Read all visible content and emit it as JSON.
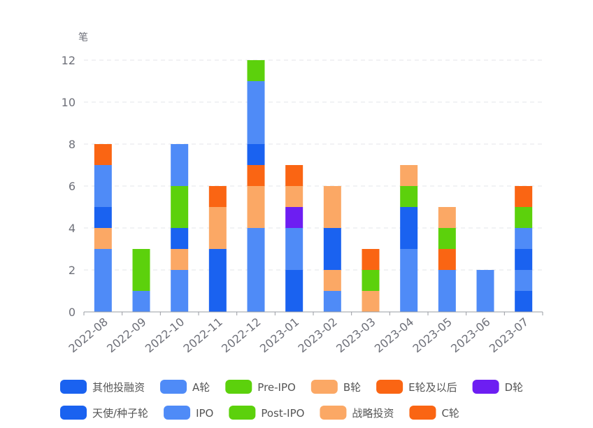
{
  "chart_data": {
    "type": "bar",
    "stacked": true,
    "y_unit": "笔",
    "ylim": [
      0,
      12
    ],
    "yticks": [
      0,
      2,
      4,
      6,
      8,
      10,
      12
    ],
    "grid": true,
    "legend_position": "bottom",
    "categories": [
      "2022-08",
      "2022-09",
      "2022-10",
      "2022-11",
      "2022-12",
      "2023-01",
      "2023-02",
      "2023-03",
      "2023-04",
      "2023-05",
      "2023-06",
      "2023-07"
    ],
    "series": [
      {
        "name": "天使/种子轮",
        "color": "#1a62f0",
        "values": [
          0,
          0,
          0,
          1,
          0,
          2,
          0,
          0,
          0,
          0,
          0,
          1
        ]
      },
      {
        "name": "IPO",
        "color": "#4f8bf7",
        "values": [
          3,
          1,
          2,
          0,
          4,
          2,
          1,
          0,
          3,
          1,
          2,
          1
        ]
      },
      {
        "name": "战略投资",
        "color": "#fba865",
        "values": [
          0,
          0,
          0,
          0,
          0,
          0,
          0,
          1,
          0,
          0,
          0,
          0
        ]
      },
      {
        "name": "Post-IPO",
        "color": "#5cd10c",
        "values": [
          0,
          1,
          0,
          0,
          0,
          0,
          0,
          0,
          0,
          0,
          0,
          0
        ]
      },
      {
        "name": "其他投融资",
        "color": "#1a62f0",
        "values": [
          0,
          0,
          0,
          2,
          0,
          0,
          0,
          0,
          2,
          0,
          0,
          1
        ]
      },
      {
        "name": "B轮",
        "color": "#fba865",
        "values": [
          1,
          0,
          1,
          0,
          2,
          0,
          1,
          0,
          0,
          0,
          0,
          0
        ]
      },
      {
        "name": "A轮",
        "color": "#4f8bf7",
        "values": [
          0,
          0,
          0,
          0,
          0,
          0,
          0,
          0,
          0,
          1,
          0,
          1
        ]
      },
      {
        "name": "C轮",
        "color": "#fa6513",
        "values": [
          0,
          0,
          0,
          0,
          1,
          0,
          0,
          0,
          0,
          1,
          0,
          0
        ]
      },
      {
        "name": "天使/种子轮",
        "color": "#1a62f0",
        "values": [
          1,
          0,
          1,
          0,
          1,
          0,
          2,
          0,
          0,
          0,
          0,
          0
        ]
      },
      {
        "name": "Pre-IPO",
        "color": "#5cd10c",
        "values": [
          0,
          1,
          2,
          0,
          0,
          0,
          0,
          1,
          1,
          1,
          0,
          1
        ]
      },
      {
        "name": "IPO",
        "color": "#4f8bf7",
        "values": [
          2,
          0,
          2,
          0,
          3,
          0,
          0,
          0,
          0,
          0,
          0,
          0
        ]
      },
      {
        "name": "D轮",
        "color": "#6d1ef2",
        "values": [
          0,
          0,
          0,
          0,
          0,
          1,
          0,
          0,
          0,
          0,
          0,
          0
        ]
      },
      {
        "name": "B轮",
        "color": "#fba865",
        "values": [
          0,
          0,
          0,
          2,
          0,
          1,
          2,
          0,
          1,
          1,
          0,
          0
        ]
      },
      {
        "name": "E轮及以后",
        "color": "#fa6513",
        "values": [
          1,
          0,
          0,
          1,
          0,
          1,
          0,
          1,
          0,
          0,
          0,
          1
        ]
      },
      {
        "name": "Post-IPO",
        "color": "#5cd10c",
        "values": [
          0,
          0,
          0,
          0,
          1,
          0,
          0,
          0,
          0,
          0,
          0,
          0
        ]
      }
    ],
    "legend": [
      {
        "label": "其他投融资",
        "color": "#1a62f0"
      },
      {
        "label": "A轮",
        "color": "#4f8bf7"
      },
      {
        "label": "Pre-IPO",
        "color": "#5cd10c"
      },
      {
        "label": "B轮",
        "color": "#fba865"
      },
      {
        "label": "E轮及以后",
        "color": "#fa6513"
      },
      {
        "label": "D轮",
        "color": "#6d1ef2"
      },
      {
        "label": "天使/种子轮",
        "color": "#1a62f0"
      },
      {
        "label": "IPO",
        "color": "#4f8bf7"
      },
      {
        "label": "Post-IPO",
        "color": "#5cd10c"
      },
      {
        "label": "战略投资",
        "color": "#fba865"
      },
      {
        "label": "C轮",
        "color": "#fa6513"
      }
    ]
  }
}
